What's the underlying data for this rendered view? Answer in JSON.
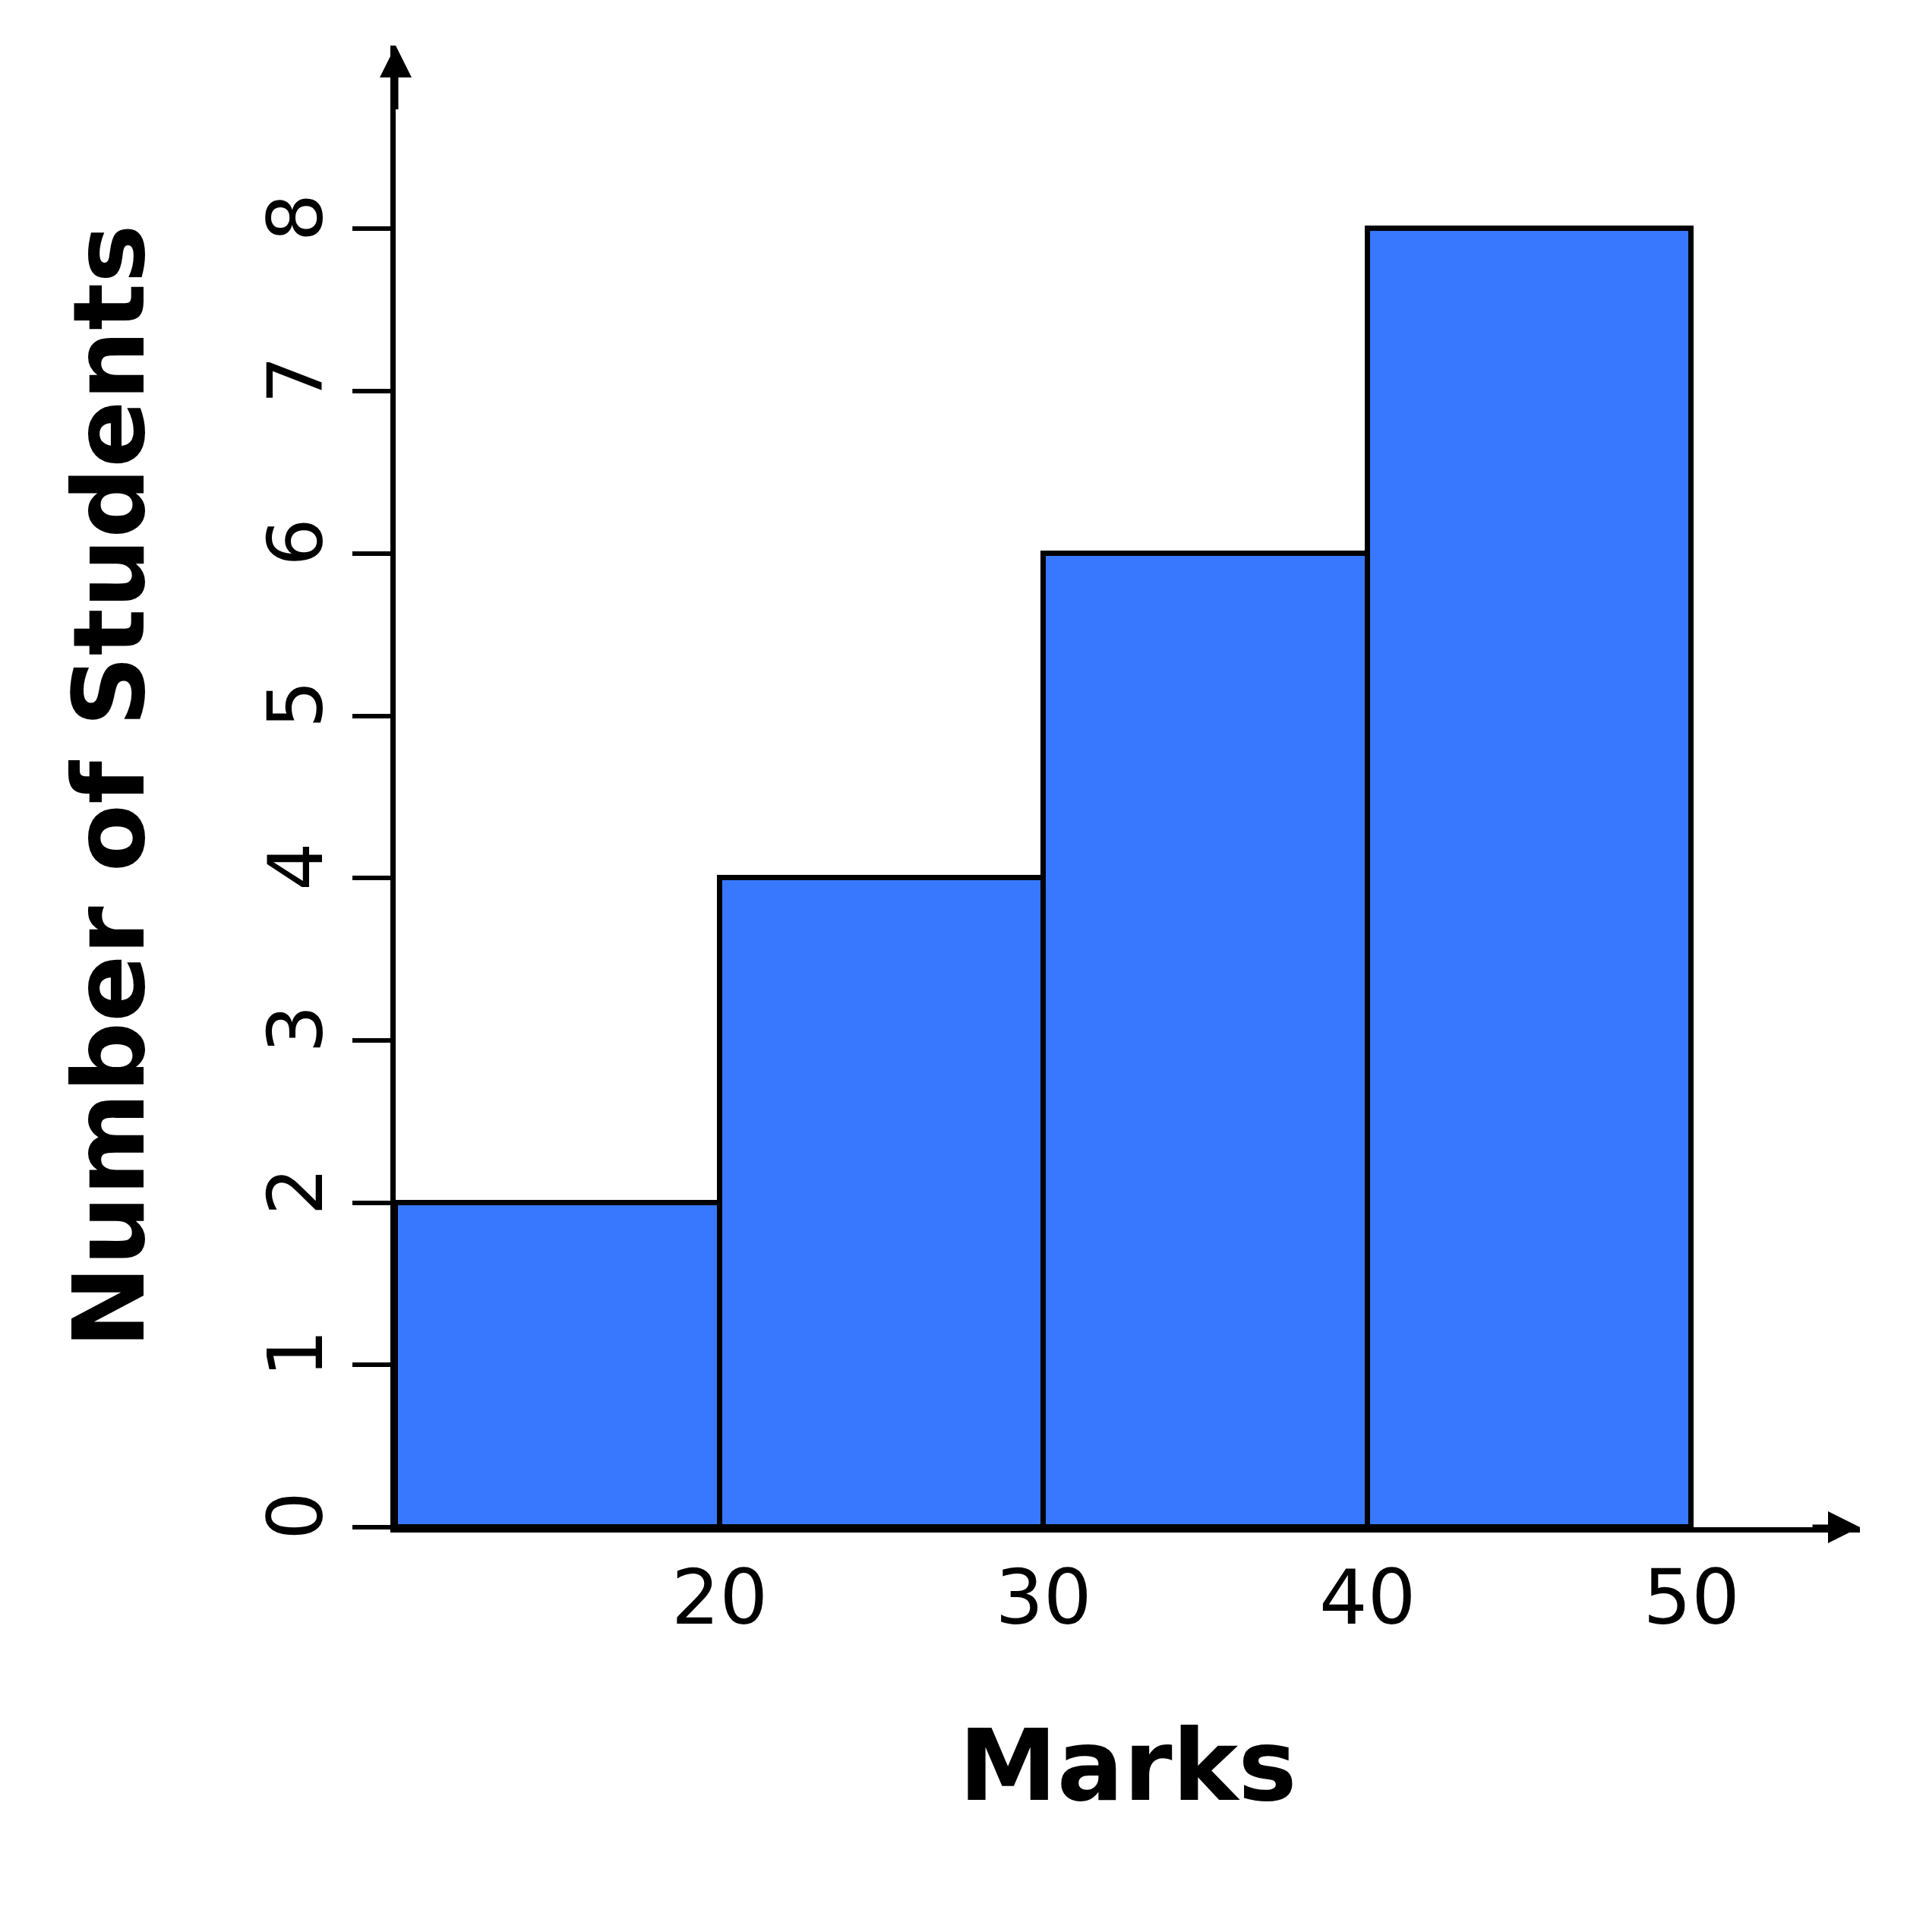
{
  "chart_data": {
    "type": "histogram",
    "xlabel": "Marks",
    "ylabel": "Number of Students",
    "bins": [
      10,
      20,
      30,
      40,
      50
    ],
    "values": [
      2,
      4,
      6,
      8
    ],
    "color": "#3778ff",
    "xlim": [
      10,
      55.2
    ],
    "xticks": [
      20,
      30,
      40,
      50
    ],
    "ylim": [
      0,
      9.13
    ],
    "yticks": [
      0,
      1,
      2,
      3,
      4,
      5,
      6,
      7,
      8
    ]
  }
}
